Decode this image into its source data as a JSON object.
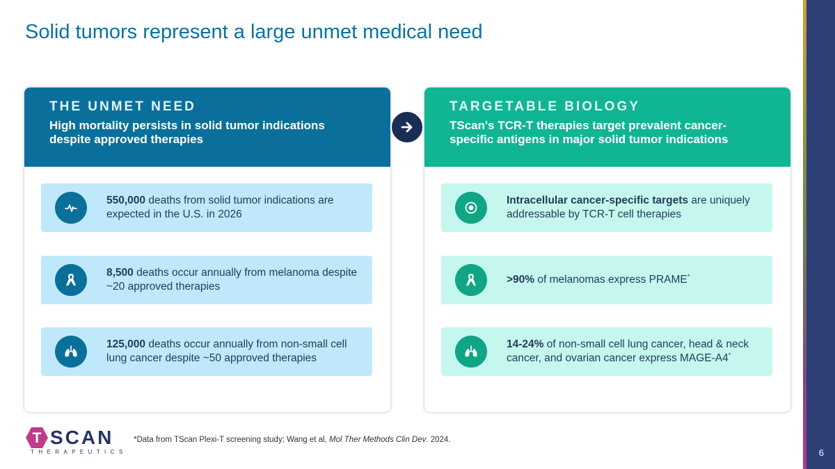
{
  "slide": {
    "title": "Solid tumors represent a large unmet medical need",
    "page_number": "6"
  },
  "left_panel": {
    "heading": "THE UNMET NEED",
    "subheading": "High mortality persists in solid tumor indications despite approved therapies",
    "cards": [
      {
        "icon": "pulse-icon",
        "bold": "550,000",
        "text": " deaths from solid tumor indications are expected in the U.S. in 2026"
      },
      {
        "icon": "ribbon-icon",
        "bold": "8,500",
        "text": " deaths occur annually from melanoma despite ~20 approved therapies"
      },
      {
        "icon": "lungs-icon",
        "bold": "125,000",
        "text": " deaths occur annually from non-small cell lung cancer despite ~50 approved therapies"
      }
    ]
  },
  "right_panel": {
    "heading": "TARGETABLE BIOLOGY",
    "subheading": "TScan's TCR-T therapies target prevalent cancer-specific antigens in major solid tumor indications",
    "cards": [
      {
        "icon": "target-icon",
        "bold": "Intracellular cancer-specific targets",
        "text": " are uniquely addressable by TCR-T cell therapies",
        "sup": ""
      },
      {
        "icon": "ribbon-icon",
        "bold": ">90%",
        "text": " of melanomas express PRAME",
        "sup": "*"
      },
      {
        "icon": "lungs-icon",
        "bold": "14-24%",
        "text": " of non-small cell lung cancer, head & neck cancer, and ovarian cancer express MAGE-A4",
        "sup": "*"
      }
    ]
  },
  "logo": {
    "wordmark": "SCAN",
    "tagline": "THERAPEUTICS",
    "brand_color": "#263466",
    "accent_color": "#c13b8a"
  },
  "footnote": {
    "prefix": "*Data from TScan Plexi-T screening study; Wang et al, ",
    "journal": "Mol Ther Methods Clin Dev",
    "suffix": ". 2024."
  },
  "colors": {
    "title": "#0a72a0",
    "left_header": "#0a709b",
    "right_header": "#10b594",
    "left_card": "#bfe9fa",
    "right_card": "#c6f7ee",
    "arrow": "#1b2d55"
  }
}
